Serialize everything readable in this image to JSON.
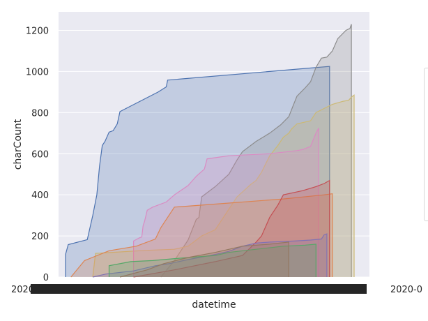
{
  "chart_data": {
    "type": "area",
    "xlabel": "datetime",
    "ylabel": "charCount",
    "ylim": [
      0,
      1290
    ],
    "yticks": [
      0,
      200,
      400,
      600,
      800,
      1000,
      1200
    ],
    "x_tick_left": "2020-0",
    "x_tick_right": "2020-0",
    "grid": true,
    "legend": "right, clipped",
    "series": [
      {
        "color": "#4c72b0",
        "points": [
          [
            0.0,
            0
          ],
          [
            0.0,
            110
          ],
          [
            0.01,
            158
          ],
          [
            0.08,
            182
          ],
          [
            0.1,
            300
          ],
          [
            0.115,
            400
          ],
          [
            0.125,
            540
          ],
          [
            0.135,
            640
          ],
          [
            0.145,
            660
          ],
          [
            0.16,
            705
          ],
          [
            0.175,
            712
          ],
          [
            0.19,
            745
          ],
          [
            0.2,
            805
          ],
          [
            0.34,
            900
          ],
          [
            0.37,
            925
          ],
          [
            0.375,
            958
          ],
          [
            0.97,
            1025
          ],
          [
            0.97,
            0
          ]
        ]
      },
      {
        "color": "#8c8c8c",
        "points": [
          [
            0.35,
            0
          ],
          [
            0.4,
            80
          ],
          [
            0.45,
            180
          ],
          [
            0.48,
            280
          ],
          [
            0.49,
            290
          ],
          [
            0.5,
            390
          ],
          [
            0.55,
            440
          ],
          [
            0.6,
            500
          ],
          [
            0.63,
            570
          ],
          [
            0.65,
            610
          ],
          [
            0.7,
            660
          ],
          [
            0.75,
            700
          ],
          [
            0.79,
            740
          ],
          [
            0.82,
            780
          ],
          [
            0.835,
            830
          ],
          [
            0.85,
            880
          ],
          [
            0.88,
            920
          ],
          [
            0.9,
            950
          ],
          [
            0.92,
            1020
          ],
          [
            0.94,
            1065
          ],
          [
            0.96,
            1070
          ],
          [
            0.98,
            1100
          ],
          [
            1.0,
            1160
          ],
          [
            1.03,
            1200
          ],
          [
            1.045,
            1210
          ],
          [
            1.05,
            1230
          ],
          [
            1.05,
            0
          ]
        ]
      },
      {
        "color": "#ccb974",
        "points": [
          [
            0.1,
            0
          ],
          [
            0.11,
            115
          ],
          [
            0.3,
            130
          ],
          [
            0.4,
            135
          ],
          [
            0.45,
            150
          ],
          [
            0.5,
            200
          ],
          [
            0.55,
            230
          ],
          [
            0.6,
            330
          ],
          [
            0.63,
            390
          ],
          [
            0.68,
            450
          ],
          [
            0.7,
            470
          ],
          [
            0.72,
            510
          ],
          [
            0.75,
            590
          ],
          [
            0.78,
            640
          ],
          [
            0.8,
            680
          ],
          [
            0.82,
            700
          ],
          [
            0.83,
            720
          ],
          [
            0.85,
            745
          ],
          [
            0.9,
            760
          ],
          [
            0.92,
            800
          ],
          [
            0.95,
            820
          ],
          [
            0.98,
            840
          ],
          [
            1.02,
            855
          ],
          [
            1.04,
            860
          ],
          [
            1.05,
            875
          ],
          [
            1.06,
            885
          ],
          [
            1.06,
            0
          ]
        ]
      },
      {
        "color": "#da8bc3",
        "points": [
          [
            0.25,
            0
          ],
          [
            0.25,
            175
          ],
          [
            0.27,
            190
          ],
          [
            0.28,
            195
          ],
          [
            0.285,
            250
          ],
          [
            0.29,
            270
          ],
          [
            0.3,
            325
          ],
          [
            0.32,
            340
          ],
          [
            0.37,
            365
          ],
          [
            0.4,
            400
          ],
          [
            0.45,
            445
          ],
          [
            0.48,
            490
          ],
          [
            0.51,
            525
          ],
          [
            0.52,
            575
          ],
          [
            0.6,
            590
          ],
          [
            0.75,
            600
          ],
          [
            0.85,
            615
          ],
          [
            0.87,
            620
          ],
          [
            0.9,
            635
          ],
          [
            0.92,
            700
          ],
          [
            0.93,
            725
          ],
          [
            0.93,
            0
          ]
        ]
      },
      {
        "color": "#dd8452",
        "points": [
          [
            0.02,
            0
          ],
          [
            0.07,
            80
          ],
          [
            0.16,
            128
          ],
          [
            0.26,
            150
          ],
          [
            0.33,
            185
          ],
          [
            0.35,
            240
          ],
          [
            0.4,
            340
          ],
          [
            0.45,
            345
          ],
          [
            0.6,
            360
          ],
          [
            0.8,
            380
          ],
          [
            0.95,
            400
          ],
          [
            0.98,
            405
          ],
          [
            0.98,
            0
          ]
        ]
      },
      {
        "color": "#c44e52",
        "points": [
          [
            0.25,
            0
          ],
          [
            0.4,
            35
          ],
          [
            0.55,
            75
          ],
          [
            0.65,
            105
          ],
          [
            0.7,
            170
          ],
          [
            0.72,
            200
          ],
          [
            0.75,
            290
          ],
          [
            0.78,
            350
          ],
          [
            0.8,
            400
          ],
          [
            0.87,
            420
          ],
          [
            0.92,
            440
          ],
          [
            0.95,
            455
          ],
          [
            0.97,
            470
          ],
          [
            0.97,
            0
          ]
        ]
      },
      {
        "color": "#8172b3",
        "points": [
          [
            0.1,
            0
          ],
          [
            0.15,
            15
          ],
          [
            0.25,
            30
          ],
          [
            0.33,
            55
          ],
          [
            0.38,
            65
          ],
          [
            0.45,
            85
          ],
          [
            0.55,
            110
          ],
          [
            0.6,
            125
          ],
          [
            0.65,
            150
          ],
          [
            0.7,
            165
          ],
          [
            0.75,
            170
          ],
          [
            0.84,
            175
          ],
          [
            0.9,
            180
          ],
          [
            0.94,
            185
          ],
          [
            0.95,
            205
          ],
          [
            0.96,
            210
          ],
          [
            0.96,
            0
          ]
        ]
      },
      {
        "color": "#55a868",
        "points": [
          [
            0.16,
            0
          ],
          [
            0.16,
            55
          ],
          [
            0.24,
            75
          ],
          [
            0.32,
            80
          ],
          [
            0.36,
            85
          ],
          [
            0.45,
            95
          ],
          [
            0.55,
            105
          ],
          [
            0.6,
            120
          ],
          [
            0.7,
            135
          ],
          [
            0.8,
            150
          ],
          [
            0.88,
            155
          ],
          [
            0.92,
            160
          ],
          [
            0.92,
            0
          ]
        ]
      },
      {
        "color": "#937860",
        "points": [
          [
            0.2,
            0
          ],
          [
            0.3,
            35
          ],
          [
            0.36,
            65
          ],
          [
            0.45,
            95
          ],
          [
            0.55,
            120
          ],
          [
            0.65,
            150
          ],
          [
            0.75,
            160
          ],
          [
            0.82,
            170
          ],
          [
            0.82,
            0
          ]
        ]
      }
    ]
  }
}
